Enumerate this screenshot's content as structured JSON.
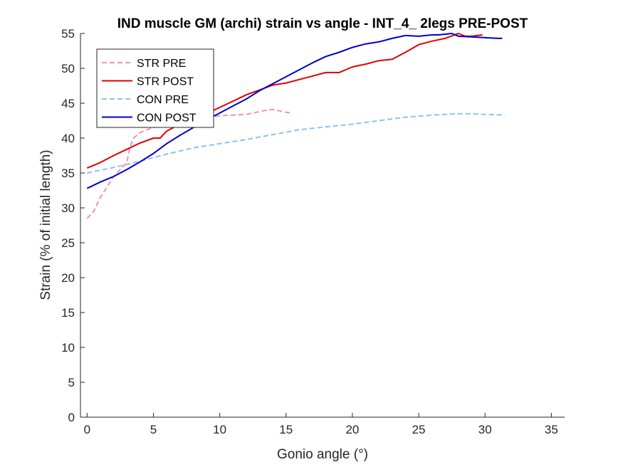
{
  "chart_data": {
    "type": "line",
    "title": "IND muscle GM (archi) strain vs angle - INT_4_ 2legs PRE-POST",
    "xlabel": "Gonio angle (°)",
    "ylabel": "Strain (% of initial length)",
    "xlim": [
      -0.5,
      36
    ],
    "ylim": [
      0,
      55
    ],
    "xticks": [
      0,
      5,
      10,
      15,
      20,
      25,
      30,
      35
    ],
    "yticks": [
      0,
      5,
      10,
      15,
      20,
      25,
      30,
      35,
      40,
      45,
      50,
      55
    ],
    "grid": false,
    "legend_position": "top-left",
    "series": [
      {
        "name": "STR PRE",
        "color": "#f48fb1",
        "dash": "dashed",
        "x": [
          0,
          0.5,
          1,
          1.5,
          2,
          2.5,
          3,
          3.2,
          3.5,
          4,
          4.5,
          5,
          6,
          7,
          8,
          9,
          10,
          11,
          12,
          13,
          13.5,
          14,
          14.5,
          15,
          15.5
        ],
        "y": [
          28.5,
          29.5,
          31.5,
          33,
          34.5,
          35.5,
          36.5,
          38.5,
          40,
          40.8,
          41.2,
          41.5,
          42,
          42.4,
          42.7,
          43,
          43.2,
          43.3,
          43.4,
          43.8,
          44,
          44.1,
          43.9,
          43.7,
          43.6
        ]
      },
      {
        "name": "STR POST",
        "color": "#e00000",
        "dash": "solid",
        "x": [
          0,
          1,
          2,
          3,
          4,
          5,
          5.5,
          6,
          7,
          8,
          9,
          10,
          11,
          12,
          13,
          14,
          15,
          16,
          17,
          18,
          19,
          19.5,
          20,
          21,
          22,
          23,
          24,
          25,
          26,
          27,
          28,
          28.5,
          29,
          29.8
        ],
        "y": [
          35.7,
          36.5,
          37.5,
          38.4,
          39.3,
          40,
          40,
          41,
          42,
          42.8,
          43.5,
          44.4,
          45.3,
          46.2,
          46.9,
          47.6,
          47.9,
          48.4,
          48.9,
          49.4,
          49.4,
          49.8,
          50.2,
          50.6,
          51.1,
          51.3,
          52.3,
          53.4,
          53.9,
          54.3,
          55,
          54.6,
          54.6,
          54.8
        ]
      },
      {
        "name": "CON PRE",
        "color": "#87c3ee",
        "dash": "dashed",
        "x": [
          0,
          2,
          4,
          6,
          8,
          10,
          12,
          14,
          16,
          18,
          20,
          22,
          24,
          26,
          28,
          29,
          30,
          31.5
        ],
        "y": [
          35,
          35.8,
          36.7,
          37.7,
          38.6,
          39.2,
          39.8,
          40.5,
          41.2,
          41.6,
          42,
          42.5,
          43,
          43.3,
          43.5,
          43.5,
          43.4,
          43.3
        ]
      },
      {
        "name": "CON POST",
        "color": "#0000cc",
        "dash": "solid",
        "x": [
          0,
          1,
          2,
          3,
          4,
          5,
          6,
          7,
          8,
          9,
          10,
          11,
          12,
          13,
          14,
          15,
          16,
          17,
          18,
          19,
          20,
          21,
          22,
          23,
          24,
          25,
          26,
          26.5,
          27,
          27.5,
          28,
          29,
          30,
          31,
          31.3
        ],
        "y": [
          32.8,
          33.7,
          34.5,
          35.5,
          36.6,
          37.8,
          39.2,
          40.4,
          41.5,
          42.6,
          43.6,
          44.6,
          45.6,
          46.8,
          47.8,
          48.8,
          49.8,
          50.8,
          51.7,
          52.3,
          53,
          53.5,
          53.8,
          54.3,
          54.7,
          54.6,
          54.8,
          54.8,
          54.9,
          55,
          54.6,
          54.5,
          54.4,
          54.3,
          54.3
        ]
      }
    ]
  }
}
